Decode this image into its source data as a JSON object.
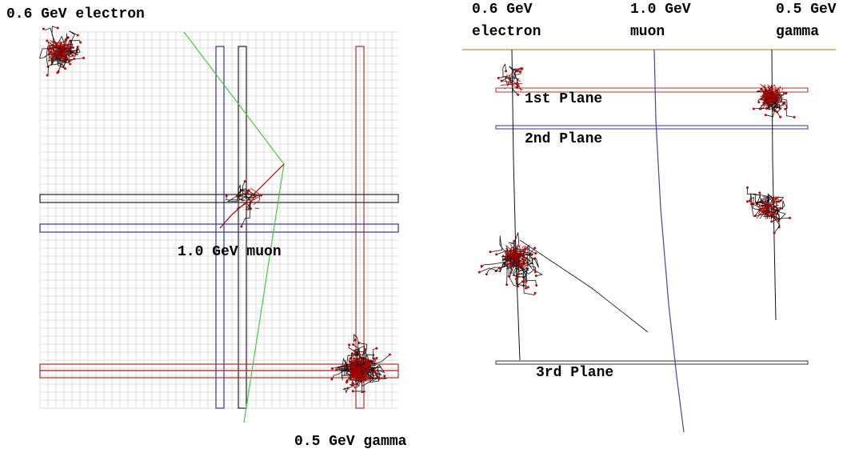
{
  "left_panel": {
    "electron_label": "0.6 GeV electron",
    "muon_label": "1.0 GeV muon",
    "gamma_label": "0.5 GeV gamma"
  },
  "right_panel": {
    "particles": [
      {
        "energy": "0.6 GeV",
        "name": "electron"
      },
      {
        "energy": "1.0 GeV",
        "name": "muon"
      },
      {
        "energy": "0.5 GeV",
        "name": "gamma"
      }
    ],
    "planes": [
      "1st Plane",
      "2nd Plane",
      "3rd Plane"
    ]
  }
}
